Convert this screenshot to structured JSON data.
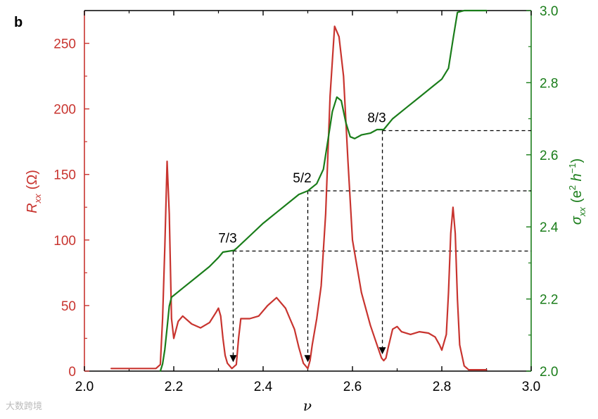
{
  "panel_label": "b",
  "watermark": "大数跨境",
  "colors": {
    "rxx": "#c8342f",
    "sigma": "#1a7d1a",
    "axis": "#000000",
    "guide": "#000000"
  },
  "chart_data": {
    "type": "line",
    "x": {
      "label": "ν",
      "range": [
        2.0,
        3.0
      ],
      "ticks": [
        2.0,
        2.2,
        2.4,
        2.6,
        2.8,
        3.0
      ],
      "tick_labels": [
        "2.0",
        "2.2",
        "2.4",
        "2.6",
        "2.8",
        "3.0"
      ]
    },
    "y_left": {
      "label_main": "R",
      "label_sub": "xx",
      "label_unit": "(Ω)",
      "range": [
        0,
        275
      ],
      "ticks": [
        0,
        50,
        100,
        150,
        200,
        250
      ],
      "tick_labels": [
        "0",
        "50",
        "100",
        "150",
        "200",
        "250"
      ]
    },
    "y_right": {
      "label_main": "σ",
      "label_sub": "xx",
      "label_paren_open": "(e",
      "label_sup1": "2",
      "label_h": " h",
      "label_sup2": "−1",
      "label_paren_close": ")",
      "range": [
        2.0,
        3.0
      ],
      "ticks": [
        2.0,
        2.2,
        2.4,
        2.6,
        2.8,
        3.0
      ],
      "tick_labels": [
        "2.0",
        "2.2",
        "2.4",
        "2.6",
        "2.8",
        "3.0"
      ]
    },
    "series": [
      {
        "axis": "left",
        "points": [
          [
            2.06,
            2
          ],
          [
            2.1,
            2
          ],
          [
            2.14,
            2
          ],
          [
            2.16,
            2
          ],
          [
            2.17,
            5
          ],
          [
            2.175,
            40
          ],
          [
            2.18,
            95
          ],
          [
            2.185,
            160
          ],
          [
            2.19,
            120
          ],
          [
            2.195,
            40
          ],
          [
            2.2,
            25
          ],
          [
            2.21,
            38
          ],
          [
            2.22,
            42
          ],
          [
            2.24,
            36
          ],
          [
            2.26,
            33
          ],
          [
            2.28,
            37
          ],
          [
            2.295,
            45
          ],
          [
            2.3,
            48
          ],
          [
            2.305,
            42
          ],
          [
            2.31,
            25
          ],
          [
            2.315,
            12
          ],
          [
            2.32,
            6
          ],
          [
            2.33,
            2
          ],
          [
            2.34,
            5
          ],
          [
            2.345,
            25
          ],
          [
            2.35,
            40
          ],
          [
            2.37,
            40
          ],
          [
            2.39,
            42
          ],
          [
            2.41,
            50
          ],
          [
            2.43,
            56
          ],
          [
            2.45,
            48
          ],
          [
            2.46,
            40
          ],
          [
            2.47,
            32
          ],
          [
            2.48,
            18
          ],
          [
            2.49,
            6
          ],
          [
            2.5,
            2
          ],
          [
            2.505,
            8
          ],
          [
            2.51,
            20
          ],
          [
            2.52,
            40
          ],
          [
            2.53,
            65
          ],
          [
            2.54,
            120
          ],
          [
            2.55,
            210
          ],
          [
            2.56,
            263
          ],
          [
            2.57,
            255
          ],
          [
            2.58,
            225
          ],
          [
            2.59,
            160
          ],
          [
            2.6,
            100
          ],
          [
            2.62,
            60
          ],
          [
            2.64,
            35
          ],
          [
            2.655,
            20
          ],
          [
            2.665,
            10
          ],
          [
            2.67,
            8
          ],
          [
            2.675,
            10
          ],
          [
            2.68,
            18
          ],
          [
            2.69,
            32
          ],
          [
            2.7,
            34
          ],
          [
            2.71,
            30
          ],
          [
            2.73,
            28
          ],
          [
            2.75,
            30
          ],
          [
            2.77,
            29
          ],
          [
            2.785,
            26
          ],
          [
            2.795,
            20
          ],
          [
            2.8,
            16
          ],
          [
            2.81,
            28
          ],
          [
            2.815,
            60
          ],
          [
            2.82,
            105
          ],
          [
            2.825,
            125
          ],
          [
            2.83,
            105
          ],
          [
            2.835,
            55
          ],
          [
            2.84,
            20
          ],
          [
            2.85,
            4
          ],
          [
            2.86,
            1
          ],
          [
            2.9,
            1
          ]
        ]
      },
      {
        "axis": "right",
        "points": [
          [
            2.17,
            2.0
          ],
          [
            2.175,
            2.02
          ],
          [
            2.18,
            2.06
          ],
          [
            2.185,
            2.12
          ],
          [
            2.19,
            2.18
          ],
          [
            2.195,
            2.205
          ],
          [
            2.2,
            2.21
          ],
          [
            2.22,
            2.23
          ],
          [
            2.25,
            2.26
          ],
          [
            2.28,
            2.29
          ],
          [
            2.3,
            2.315
          ],
          [
            2.31,
            2.33
          ],
          [
            2.335,
            2.335
          ],
          [
            2.34,
            2.34
          ],
          [
            2.37,
            2.375
          ],
          [
            2.4,
            2.41
          ],
          [
            2.43,
            2.44
          ],
          [
            2.46,
            2.47
          ],
          [
            2.48,
            2.49
          ],
          [
            2.5,
            2.5
          ],
          [
            2.52,
            2.52
          ],
          [
            2.535,
            2.56
          ],
          [
            2.545,
            2.64
          ],
          [
            2.555,
            2.72
          ],
          [
            2.565,
            2.76
          ],
          [
            2.575,
            2.75
          ],
          [
            2.585,
            2.69
          ],
          [
            2.595,
            2.65
          ],
          [
            2.605,
            2.645
          ],
          [
            2.62,
            2.655
          ],
          [
            2.64,
            2.66
          ],
          [
            2.655,
            2.67
          ],
          [
            2.67,
            2.67
          ],
          [
            2.69,
            2.7
          ],
          [
            2.72,
            2.73
          ],
          [
            2.75,
            2.76
          ],
          [
            2.78,
            2.79
          ],
          [
            2.8,
            2.81
          ],
          [
            2.815,
            2.84
          ],
          [
            2.825,
            2.92
          ],
          [
            2.835,
            2.995
          ],
          [
            2.85,
            3.0
          ],
          [
            2.9,
            3.0
          ]
        ]
      }
    ],
    "annotations": [
      {
        "label": "7/3",
        "x": 2.333,
        "level": 2.333,
        "rxx_min": 2
      },
      {
        "label": "5/2",
        "x": 2.5,
        "level": 2.5,
        "rxx_min": 2
      },
      {
        "label": "8/3",
        "x": 2.667,
        "level": 2.667,
        "rxx_min": 8
      }
    ]
  }
}
